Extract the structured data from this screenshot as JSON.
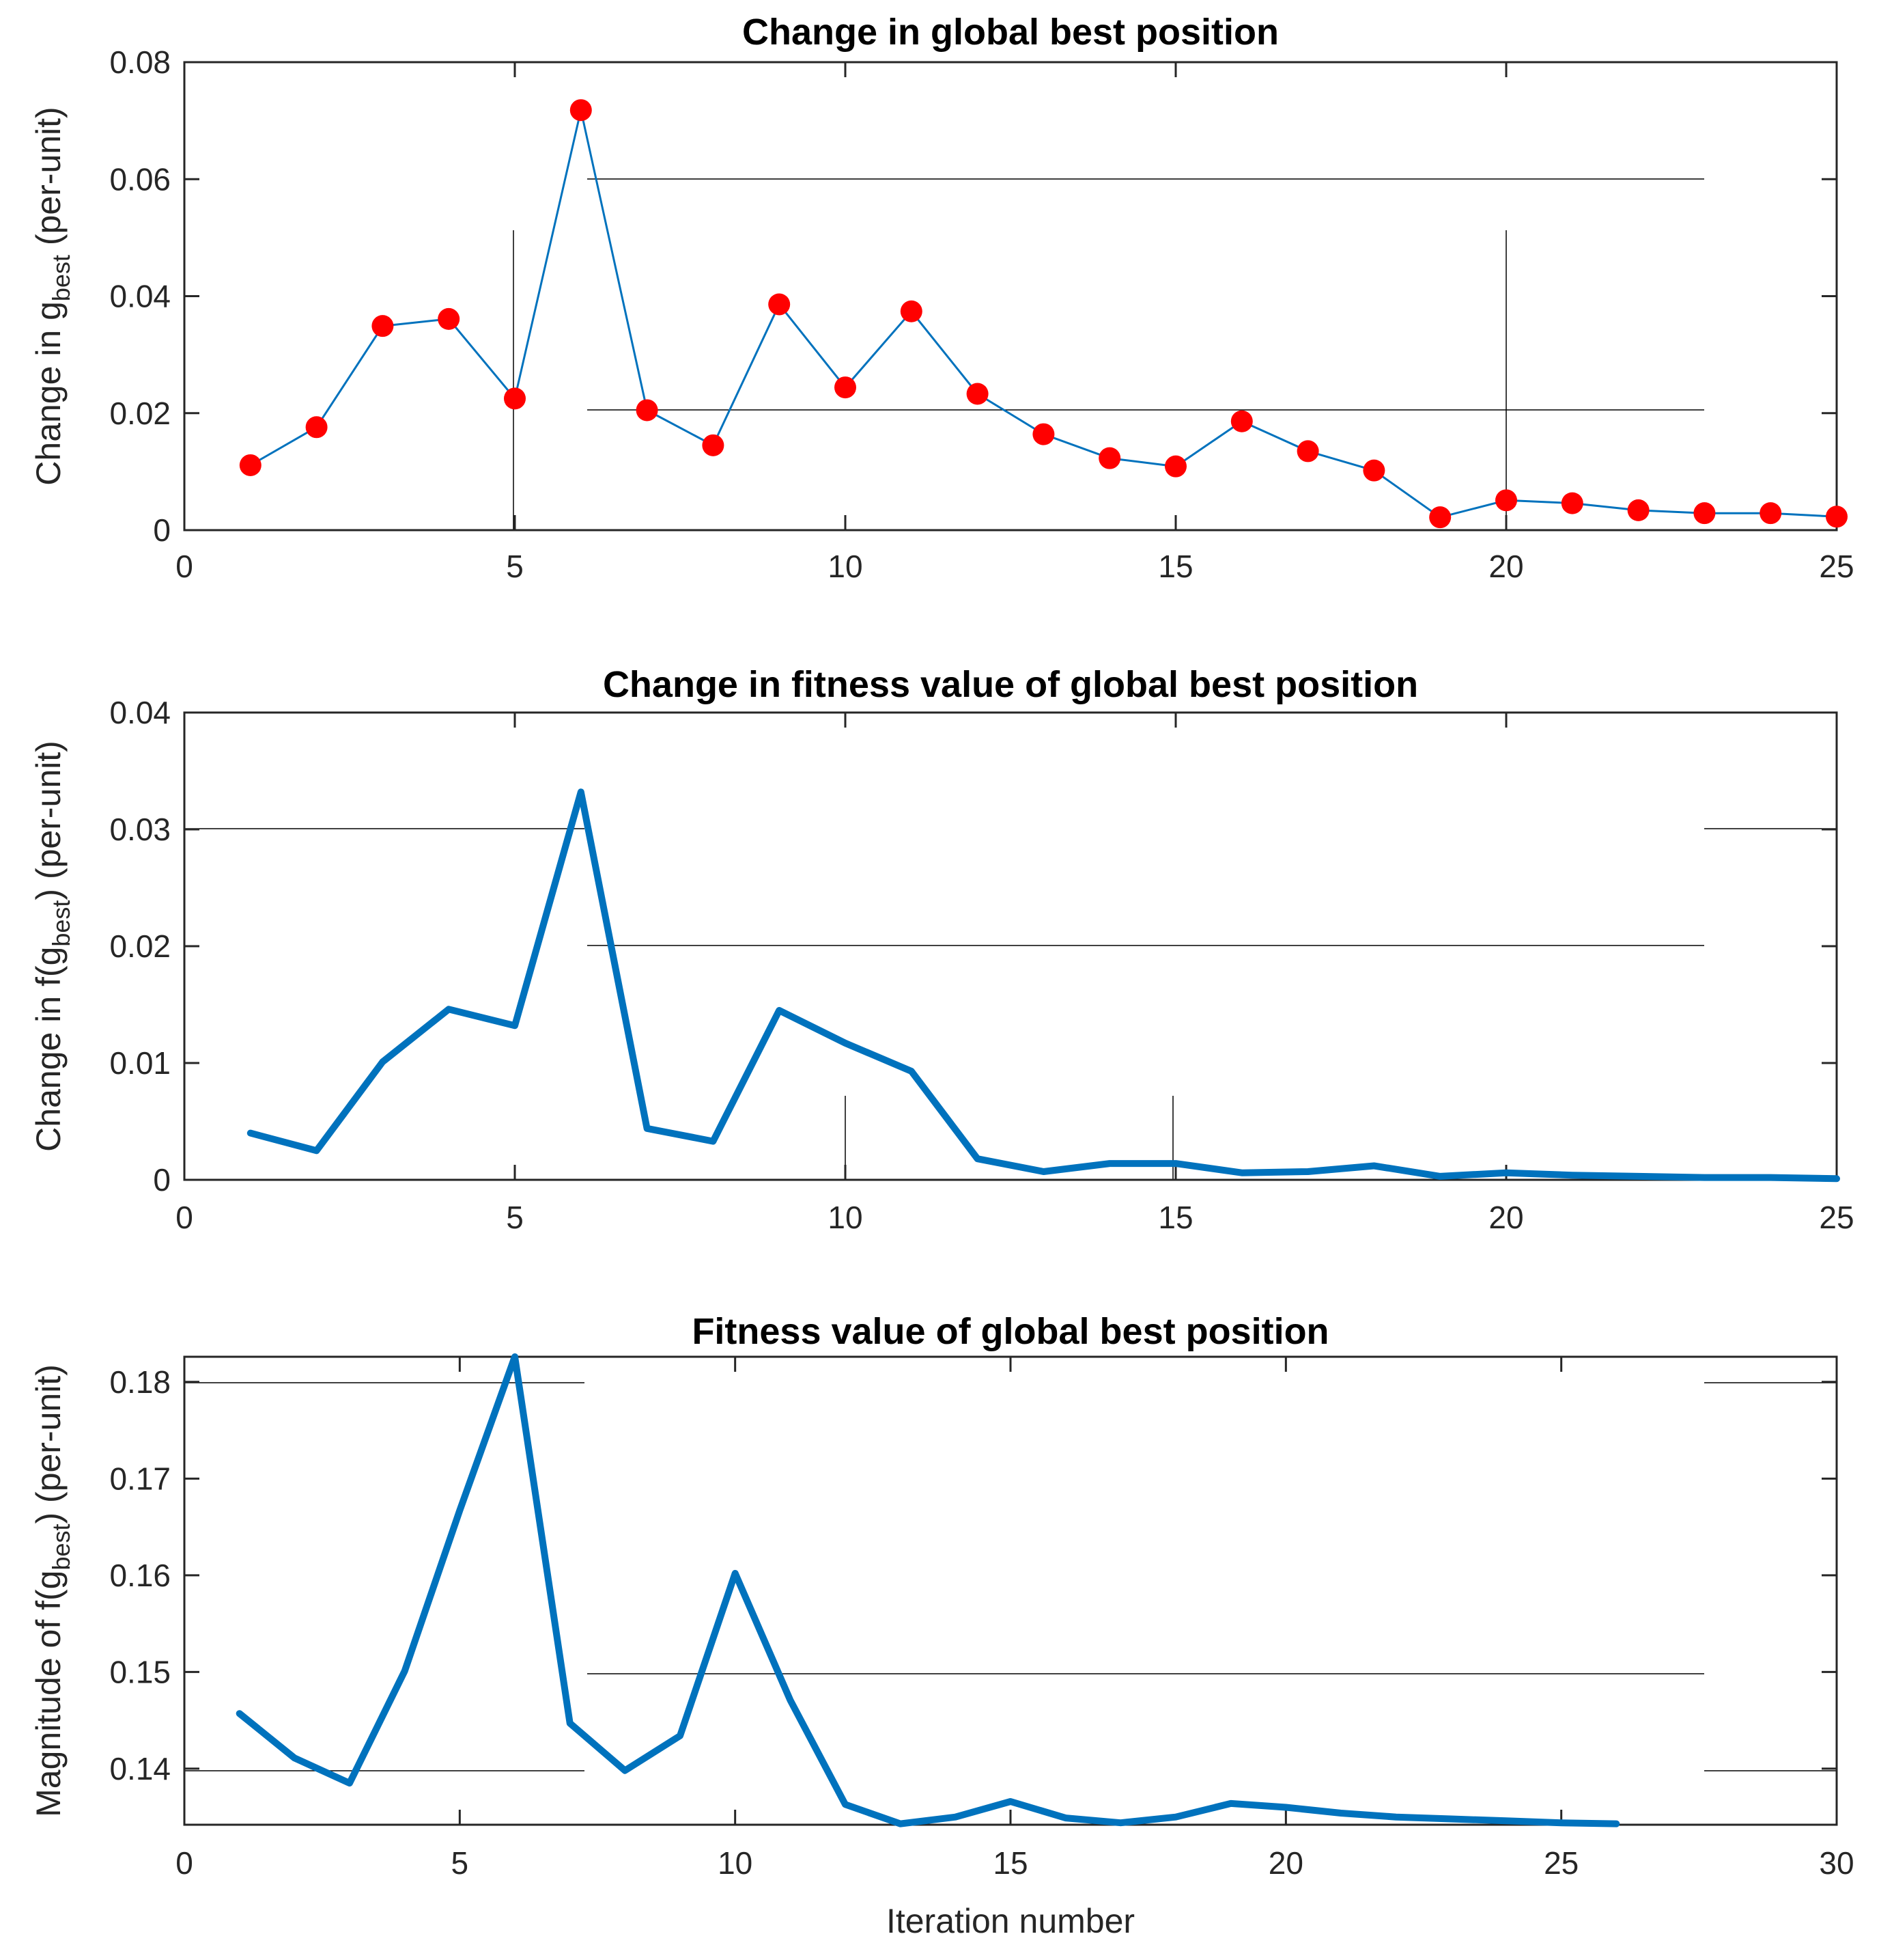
{
  "chart_data": [
    {
      "type": "line",
      "title": "Change in global best position",
      "xlabel": "",
      "ylabel_parts": [
        "Change in g",
        "best",
        " (per-unit)"
      ],
      "xlim": [
        0,
        25
      ],
      "ylim": [
        0,
        0.08
      ],
      "xticks": [
        0,
        5,
        10,
        15,
        20,
        25
      ],
      "yticks": [
        0,
        0.02,
        0.04,
        0.06,
        0.08
      ],
      "ytick_labels": [
        "0",
        "0.02",
        "0.04",
        "0.06",
        "0.08"
      ],
      "line_color": "#0072BD",
      "marker_color": "#FF0000",
      "markers": true,
      "line_width": "thin",
      "x": [
        1,
        2,
        3,
        4,
        5,
        6,
        7,
        8,
        9,
        10,
        11,
        12,
        13,
        14,
        15,
        16,
        17,
        18,
        19,
        20,
        21,
        22,
        23,
        24,
        25
      ],
      "values": [
        0.0111,
        0.0176,
        0.0349,
        0.0361,
        0.0225,
        0.0718,
        0.0205,
        0.0145,
        0.0386,
        0.0244,
        0.0374,
        0.0233,
        0.0164,
        0.0123,
        0.0109,
        0.0186,
        0.0135,
        0.0102,
        0.0022,
        0.0051,
        0.0046,
        0.0034,
        0.0029,
        0.0029,
        0.0023
      ]
    },
    {
      "type": "line",
      "title": "Change in fitness value of global best position",
      "xlabel": "",
      "ylabel_parts": [
        "Change in f(g",
        "best",
        ") (per-unit)"
      ],
      "xlim": [
        0,
        25
      ],
      "ylim": [
        0,
        0.04
      ],
      "xticks": [
        0,
        5,
        10,
        15,
        20,
        25
      ],
      "yticks": [
        0,
        0.01,
        0.02,
        0.03,
        0.04
      ],
      "ytick_labels": [
        "0",
        "0.01",
        "0.02",
        "0.03",
        "0.04"
      ],
      "line_color": "#0072BD",
      "markers": false,
      "line_width": "thick",
      "x": [
        1,
        2,
        3,
        4,
        5,
        6,
        7,
        8,
        9,
        10,
        11,
        12,
        13,
        14,
        15,
        16,
        17,
        18,
        19,
        20,
        21,
        22,
        23,
        24,
        25
      ],
      "values": [
        0.004,
        0.0025,
        0.0101,
        0.0146,
        0.0132,
        0.0332,
        0.0044,
        0.0033,
        0.0145,
        0.0117,
        0.0093,
        0.0018,
        0.0007,
        0.0014,
        0.0014,
        0.0006,
        0.0007,
        0.0012,
        0.0003,
        0.0006,
        0.0004,
        0.0003,
        0.0002,
        0.0002,
        0.0001
      ]
    },
    {
      "type": "line",
      "title": "Fitness value of global best position",
      "xlabel": "Iteration number",
      "ylabel_parts": [
        "Magnitude of f(g",
        "best",
        ") (per-unit)"
      ],
      "xlim": [
        0,
        30
      ],
      "ylim": [
        0.1342,
        0.1826
      ],
      "xticks": [
        0,
        5,
        10,
        15,
        20,
        25,
        30
      ],
      "yticks": [
        0.14,
        0.15,
        0.16,
        0.17,
        0.18
      ],
      "ytick_labels": [
        "0.14",
        "0.15",
        "0.16",
        "0.17",
        "0.18"
      ],
      "line_color": "#0072BD",
      "markers": false,
      "line_width": "thick",
      "x": [
        1,
        2,
        3,
        4,
        5,
        6,
        7,
        8,
        9,
        10,
        11,
        12,
        13,
        14,
        15,
        16,
        17,
        18,
        19,
        20,
        21,
        22,
        23,
        24,
        25,
        26
      ],
      "values": [
        0.1457,
        0.1411,
        0.1385,
        0.1501,
        0.1667,
        0.1826,
        0.1447,
        0.1398,
        0.1434,
        0.1602,
        0.1471,
        0.1363,
        0.1343,
        0.135,
        0.1366,
        0.1349,
        0.1344,
        0.135,
        0.1364,
        0.136,
        0.1354,
        0.135,
        0.1348,
        0.1346,
        0.1344,
        0.1343
      ]
    }
  ]
}
